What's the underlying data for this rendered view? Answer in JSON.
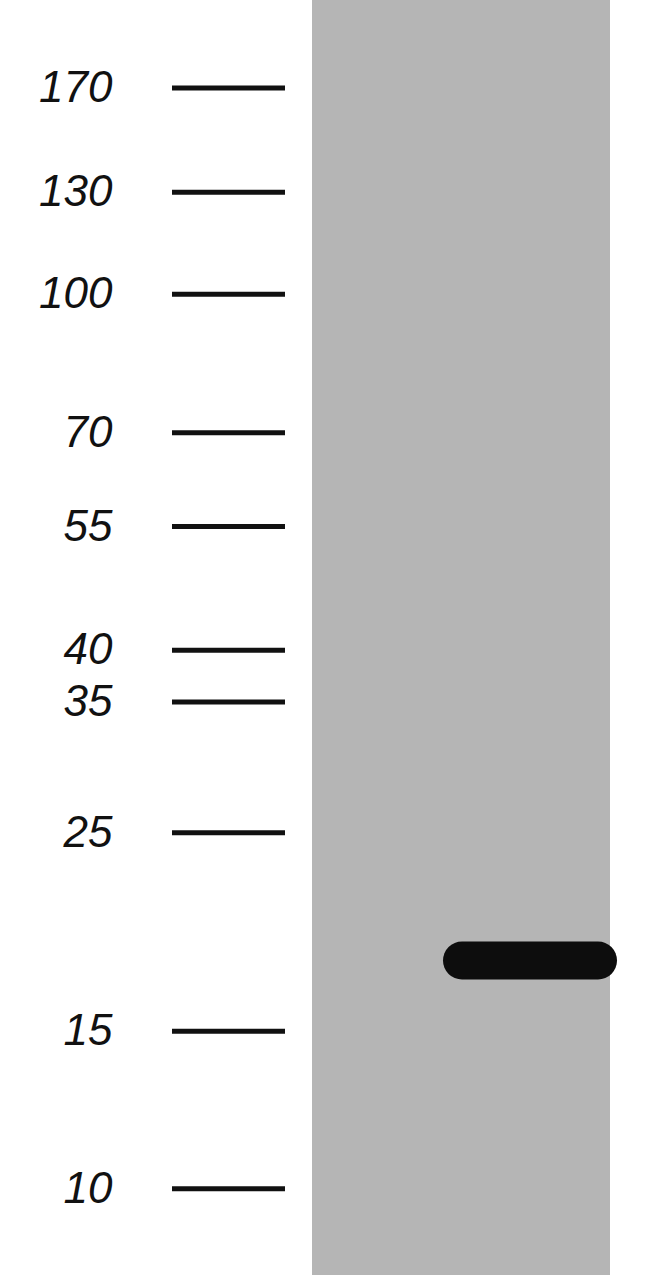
{
  "chart_data": {
    "type": "western_blot",
    "ylim": [
      8,
      213
    ],
    "yticks": [
      170,
      130,
      100,
      70,
      55,
      40,
      35,
      25,
      15,
      10
    ],
    "log": "y",
    "tick_labels": "y",
    "values": [
      18
    ],
    "color": "#0d0d0d"
  }
}
